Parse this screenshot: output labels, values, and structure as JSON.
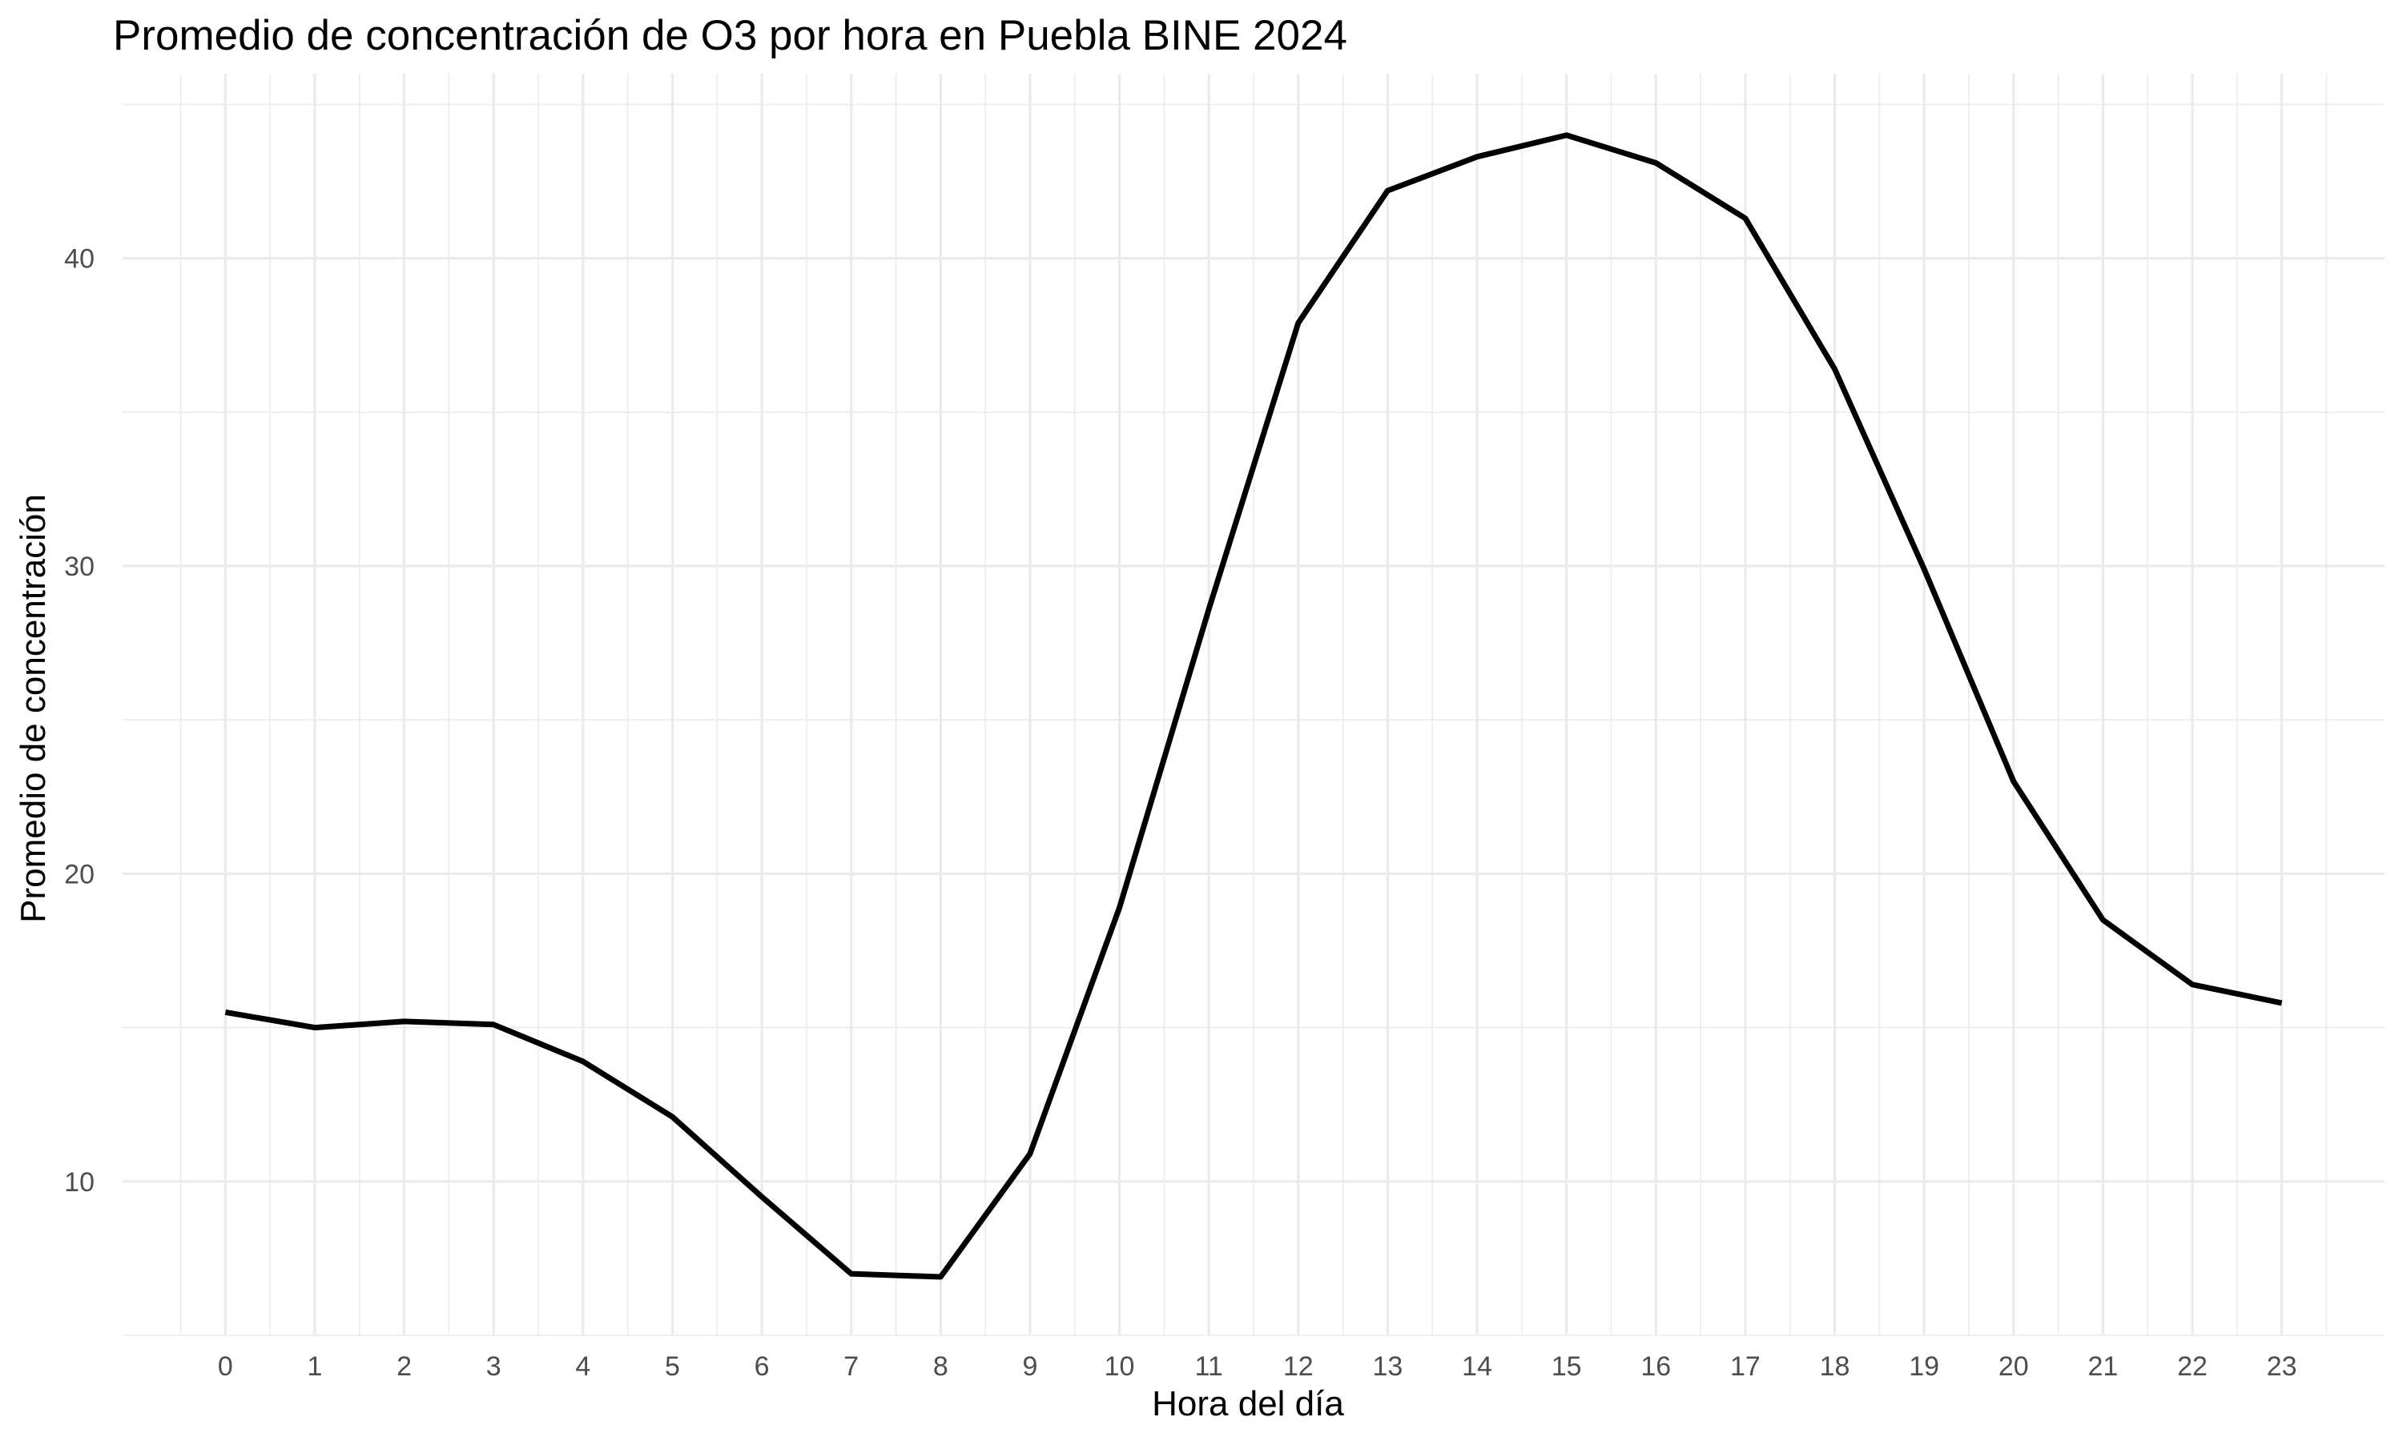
{
  "chart_data": {
    "type": "line",
    "title": "Promedio de concentración de O3 por hora en Puebla BINE 2024",
    "xlabel": "Hora del día",
    "ylabel": "Promedio de concentración",
    "x": [
      0,
      1,
      2,
      3,
      4,
      5,
      6,
      7,
      8,
      9,
      10,
      11,
      12,
      13,
      14,
      15,
      16,
      17,
      18,
      19,
      20,
      21,
      22,
      23
    ],
    "x_tick_labels": [
      "0",
      "1",
      "2",
      "3",
      "4",
      "5",
      "6",
      "7",
      "8",
      "9",
      "10",
      "11",
      "12",
      "13",
      "14",
      "15",
      "16",
      "17",
      "18",
      "19",
      "20",
      "21",
      "22",
      "23"
    ],
    "y_ticks": [
      10,
      20,
      30,
      40
    ],
    "y_tick_labels": [
      "10",
      "20",
      "30",
      "40"
    ],
    "series": [
      {
        "values": [
          15.5,
          15.0,
          15.2,
          15.1,
          13.9,
          12.1,
          9.5,
          7.0,
          6.9,
          10.9,
          18.9,
          28.6,
          37.9,
          42.2,
          43.3,
          44.0,
          43.1,
          41.3,
          36.4,
          29.9,
          23.0,
          18.5,
          16.4,
          15.8
        ],
        "color": "#000000"
      }
    ],
    "xlim": [
      -1.15,
      24.15
    ],
    "ylim": [
      5,
      46
    ],
    "grid": true,
    "legend": "none"
  }
}
